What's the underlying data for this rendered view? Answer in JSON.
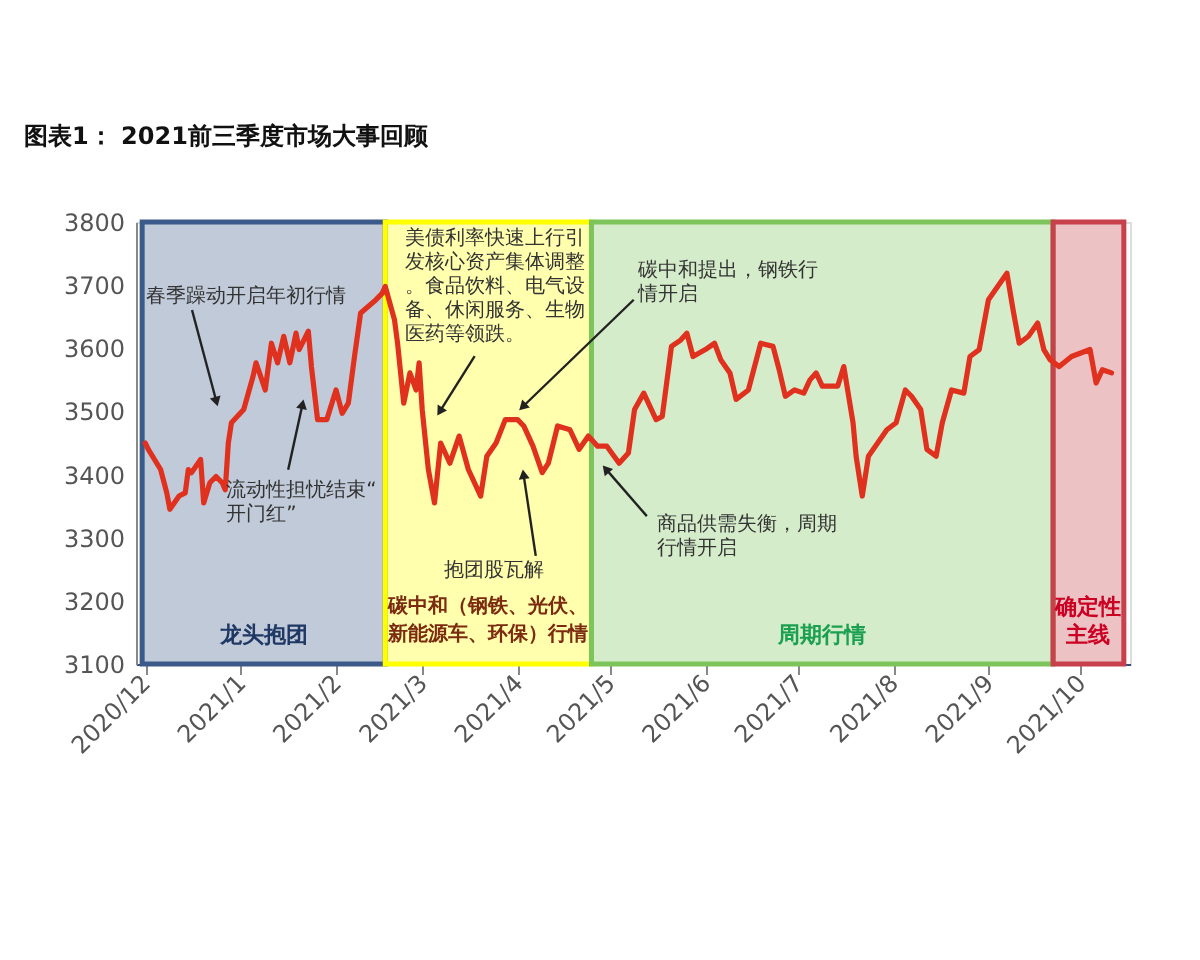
{
  "chart_data": {
    "type": "line",
    "title": "图表1： 2021前三季度市场大事回顾",
    "x": [
      "2020-12-01",
      "2020-12-02",
      "2020-12-06",
      "2020-12-08",
      "2020-12-09",
      "2020-12-12",
      "2020-12-14",
      "2020-12-15",
      "2020-12-16",
      "2020-12-19",
      "2020-12-20",
      "2020-12-22",
      "2020-12-24",
      "2020-12-26",
      "2020-12-27",
      "2020-12-28",
      "2020-12-29",
      "2021-01-02",
      "2021-01-05",
      "2021-01-06",
      "2021-01-09",
      "2021-01-11",
      "2021-01-13",
      "2021-01-15",
      "2021-01-17",
      "2021-01-19",
      "2021-01-20",
      "2021-01-23",
      "2021-01-24",
      "2021-01-26",
      "2021-01-29",
      "2021-02-01",
      "2021-02-03",
      "2021-02-05",
      "2021-02-07",
      "2021-02-09",
      "2021-02-14",
      "2021-02-16",
      "2021-02-17",
      "2021-02-20",
      "2021-02-21",
      "2021-02-23",
      "2021-02-25",
      "2021-02-27",
      "2021-02-28",
      "2021-03-01",
      "2021-03-03",
      "2021-03-05",
      "2021-03-07",
      "2021-03-10",
      "2021-03-13",
      "2021-03-16",
      "2021-03-20",
      "2021-03-22",
      "2021-03-25",
      "2021-03-28",
      "2021-04-01",
      "2021-04-03",
      "2021-04-06",
      "2021-04-09",
      "2021-04-11",
      "2021-04-14",
      "2021-04-18",
      "2021-04-21",
      "2021-04-24",
      "2021-04-27",
      "2021-04-30",
      "2021-05-04",
      "2021-05-07",
      "2021-05-09",
      "2021-05-12",
      "2021-05-16",
      "2021-05-18",
      "2021-05-21",
      "2021-05-24",
      "2021-05-26",
      "2021-05-28",
      "2021-06-01",
      "2021-06-04",
      "2021-06-06",
      "2021-06-09",
      "2021-06-11",
      "2021-06-15",
      "2021-06-19",
      "2021-06-23",
      "2021-06-25",
      "2021-06-27",
      "2021-06-30",
      "2021-07-03",
      "2021-07-05",
      "2021-07-07",
      "2021-07-09",
      "2021-07-14",
      "2021-07-16",
      "2021-07-19",
      "2021-07-20",
      "2021-07-22",
      "2021-07-24",
      "2021-07-27",
      "2021-07-30",
      "2021-08-02",
      "2021-08-05",
      "2021-08-07",
      "2021-08-10",
      "2021-08-12",
      "2021-08-15",
      "2021-08-17",
      "2021-08-20",
      "2021-08-24",
      "2021-08-26",
      "2021-08-29",
      "2021-09-01",
      "2021-09-04",
      "2021-09-07",
      "2021-09-09",
      "2021-09-11",
      "2021-09-14",
      "2021-09-17",
      "2021-09-19",
      "2021-09-21",
      "2021-09-24",
      "2021-09-28",
      "2021-10-04",
      "2021-10-06",
      "2021-10-08",
      "2021-10-11"
    ],
    "series": [
      {
        "color": "#e0301e",
        "values": [
          3450,
          3440,
          3408,
          3371,
          3345,
          3366,
          3371,
          3408,
          3403,
          3424,
          3355,
          3387,
          3397,
          3387,
          3376,
          3450,
          3482,
          3503,
          3555,
          3577,
          3534,
          3608,
          3577,
          3619,
          3577,
          3624,
          3598,
          3627,
          3571,
          3487,
          3487,
          3534,
          3497,
          3513,
          3587,
          3656,
          3677,
          3687,
          3698,
          3645,
          3608,
          3513,
          3561,
          3534,
          3577,
          3503,
          3408,
          3355,
          3450,
          3418,
          3461,
          3408,
          3366,
          3429,
          3450,
          3487,
          3487,
          3477,
          3445,
          3403,
          3418,
          3477,
          3471,
          3440,
          3461,
          3445,
          3445,
          3418,
          3434,
          3503,
          3529,
          3487,
          3492,
          3603,
          3613,
          3624,
          3587,
          3598,
          3608,
          3582,
          3561,
          3519,
          3534,
          3608,
          3603,
          3566,
          3524,
          3534,
          3529,
          3550,
          3561,
          3540,
          3540,
          3571,
          3482,
          3429,
          3366,
          3429,
          3450,
          3471,
          3482,
          3534,
          3524,
          3503,
          3440,
          3429,
          3482,
          3534,
          3529,
          3587,
          3598,
          3677,
          3698,
          3719,
          3661,
          3608,
          3619,
          3640,
          3598,
          3582,
          3571,
          3587,
          3598,
          3545,
          3566,
          3561
        ]
      }
    ],
    "xlim": [
      "2020-11-28",
      "2021-10-17"
    ],
    "xticks": [
      {
        "value": "2020-12",
        "label": "2020/12"
      },
      {
        "value": "2021-01",
        "label": "2021/1"
      },
      {
        "value": "2021-02",
        "label": "2021/2"
      },
      {
        "value": "2021-03",
        "label": "2021/3"
      },
      {
        "value": "2021-04",
        "label": "2021/4"
      },
      {
        "value": "2021-05",
        "label": "2021/5"
      },
      {
        "value": "2021-06",
        "label": "2021/6"
      },
      {
        "value": "2021-07",
        "label": "2021/7"
      },
      {
        "value": "2021-08",
        "label": "2021/8"
      },
      {
        "value": "2021-09",
        "label": "2021/9"
      },
      {
        "value": "2021-10",
        "label": "2021/10"
      }
    ],
    "ylim": [
      3100,
      3800
    ],
    "yticks": [
      3100,
      3200,
      3300,
      3400,
      3500,
      3600,
      3700,
      3800
    ],
    "bands": [
      {
        "axis": "x",
        "from": "2020-11-30",
        "to": "2021-02-17",
        "label": "龙头抱团",
        "color": "#3b5a8a"
      },
      {
        "axis": "x",
        "from": "2021-02-17",
        "to": "2021-04-25",
        "label": "碳中和（钢铁、光伏、新能源车、环保）行情",
        "color": "#ffff00"
      },
      {
        "axis": "x",
        "from": "2021-04-25",
        "to": "2021-09-22",
        "label": "周期行情",
        "color": "#7dc45a"
      },
      {
        "axis": "x",
        "from": "2021-09-22",
        "to": "2021-10-15",
        "label": "确定性主线",
        "color": "#c8404b"
      }
    ],
    "annotations": [
      {
        "text": "春季躁动开启年初行情",
        "x": "2020-12-24",
        "y": 3518
      },
      {
        "text": "流动性担忧结束“开门红”",
        "x": "2021-01-21",
        "y": 3509
      },
      {
        "text": "美债利率快速上行引发核心资产集体调整。食品饮料、电气设备、休闲服务、生物医药等领跌。",
        "x": "2021-03-07",
        "y": 3502
      },
      {
        "text": "碳中和提出，钢铁行情开启",
        "x": "2021-04-03",
        "y": 3509
      },
      {
        "text": "抱团股瓦解",
        "x": "2021-04-03",
        "y": 3398
      },
      {
        "text": "商品供需失衡，周期行情开启",
        "x": "2021-04-30",
        "y": 3407
      }
    ],
    "grid": false
  }
}
